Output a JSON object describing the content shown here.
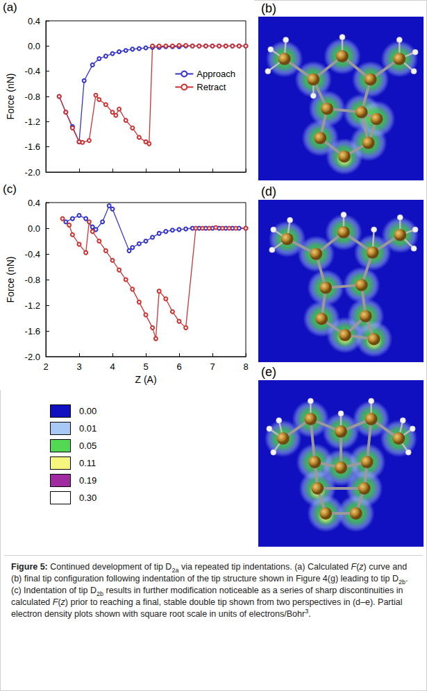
{
  "chart_data": [
    {
      "type": "line",
      "panel": "(a)",
      "y_label": "Force (nN)",
      "xlim": [
        2,
        8
      ],
      "xticks": [
        2,
        3,
        4,
        5,
        6,
        7,
        8
      ],
      "ylim": [
        -2,
        0.4
      ],
      "yticks": [
        {
          "value": -2,
          "label": "-2.0"
        },
        -1.6,
        -1.2,
        -0.8,
        -0.4,
        {
          "value": 0,
          "label": "0.0"
        },
        0.4
      ],
      "tick_labels": "y",
      "grid": false,
      "legend": "upper right",
      "marker": "open circle",
      "series": [
        {
          "name": "Approach",
          "color": "#3333cc",
          "x": [
            2.4,
            2.6,
            2.8,
            3.0,
            3.15,
            3.4,
            3.6,
            3.8,
            4.0,
            4.2,
            4.4,
            4.6,
            4.8,
            5.0,
            5.2,
            5.4,
            5.6,
            5.8,
            6.0,
            6.2,
            6.4,
            6.6,
            6.8,
            7.0,
            7.2,
            7.4,
            7.6,
            7.8,
            8.0
          ],
          "values": [
            -0.8,
            -1.05,
            -1.28,
            -1.52,
            -0.55,
            -0.3,
            -0.2,
            -0.16,
            -0.12,
            -0.09,
            -0.07,
            -0.05,
            -0.04,
            -0.03,
            -0.02,
            -0.02,
            -0.01,
            -0.01,
            -0.01,
            0,
            0,
            0,
            0,
            0,
            0,
            0,
            0,
            0,
            0
          ]
        },
        {
          "name": "Retract",
          "color": "#cc3333",
          "x": [
            2.4,
            2.6,
            2.8,
            3.0,
            3.1,
            3.3,
            3.5,
            3.6,
            3.8,
            4.0,
            4.1,
            4.2,
            4.4,
            4.6,
            4.8,
            5.0,
            5.1,
            5.2,
            5.4,
            5.6,
            5.8,
            6.0,
            6.2,
            6.4,
            6.6,
            6.8,
            7.0,
            7.2,
            7.4,
            7.6,
            7.8,
            8.0
          ],
          "values": [
            -0.8,
            -1.05,
            -1.3,
            -1.52,
            -1.53,
            -1.5,
            -0.78,
            -0.85,
            -0.93,
            -1.05,
            -1.1,
            -1.0,
            -1.18,
            -1.3,
            -1.45,
            -1.52,
            -1.55,
            0,
            0,
            0,
            0,
            0.01,
            0.01,
            0,
            0,
            0,
            0,
            0,
            0,
            0,
            0,
            0
          ]
        }
      ]
    },
    {
      "type": "line",
      "panel": "(c)",
      "x_label": "Z (A)",
      "y_label": "Force (nN)",
      "xlim": [
        2,
        8
      ],
      "xticks": [
        2,
        3,
        4,
        5,
        6,
        7,
        8
      ],
      "ylim": [
        -2,
        0.4
      ],
      "yticks": [
        {
          "value": -2,
          "label": "-2.0"
        },
        -1.6,
        -1.2,
        -0.8,
        -0.4,
        {
          "value": 0,
          "label": "0.0"
        },
        0.4
      ],
      "grid": false,
      "marker": "open circle",
      "series": [
        {
          "color": "#3333cc",
          "x": [
            2.6,
            2.8,
            3.0,
            3.2,
            3.4,
            3.5,
            3.7,
            3.9,
            4.0,
            4.5,
            4.6,
            4.8,
            5.0,
            5.2,
            5.4,
            5.6,
            5.8,
            6.0,
            6.2,
            6.4,
            6.6,
            6.8,
            7.0,
            7.2,
            7.4,
            7.6,
            7.8,
            8.0
          ],
          "values": [
            0.1,
            0.15,
            0.2,
            0.15,
            0.02,
            -0.02,
            0.1,
            0.35,
            0.3,
            -0.35,
            -0.3,
            -0.24,
            -0.2,
            -0.14,
            -0.08,
            -0.05,
            -0.03,
            -0.02,
            -0.01,
            0,
            0,
            0,
            0,
            0,
            0,
            0,
            0,
            0
          ]
        },
        {
          "color": "#cc3333",
          "x": [
            2.5,
            2.7,
            2.8,
            3.0,
            3.2,
            3.3,
            3.4,
            3.6,
            3.8,
            4.0,
            4.2,
            4.4,
            4.6,
            4.8,
            5.0,
            5.2,
            5.3,
            5.4,
            5.6,
            5.8,
            6.0,
            6.2,
            6.5,
            6.7,
            6.9,
            7.1,
            7.3,
            7.5,
            7.7,
            8.0
          ],
          "values": [
            0.15,
            0.05,
            -0.1,
            -0.25,
            -0.38,
            0.1,
            -0.05,
            -0.2,
            -0.35,
            -0.5,
            -0.65,
            -0.8,
            -0.95,
            -1.15,
            -1.35,
            -1.55,
            -1.72,
            -0.98,
            -1.1,
            -1.3,
            -1.45,
            -1.55,
            0,
            0,
            0,
            0.01,
            0,
            0,
            0,
            0
          ]
        }
      ]
    }
  ],
  "image_panels": [
    "(b)",
    "(d)",
    "(e)"
  ],
  "density_legend": [
    {
      "label": "0.00",
      "color": "#1010c0"
    },
    {
      "label": "0.01",
      "color": "#a8c8f6"
    },
    {
      "label": "0.05",
      "color": "#52d852"
    },
    {
      "label": "0.11",
      "color": "#f6f67e"
    },
    {
      "label": "0.19",
      "color": "#a02aa0"
    },
    {
      "label": "0.30",
      "color": "#ffffff"
    }
  ],
  "caption": [
    {
      "text": "Figure 5:",
      "style": "bold"
    },
    {
      "text": " Continued development of tip D"
    },
    {
      "text": "2a",
      "style": "sub"
    },
    {
      "text": " via repeated tip indentations. (a) Calculated "
    },
    {
      "text": "F",
      "style": "italic"
    },
    {
      "text": "("
    },
    {
      "text": "z",
      "style": "italic"
    },
    {
      "text": ") curve and (b) final tip configuration following indentation of the tip structure shown in Figure 4(g) leading to tip D"
    },
    {
      "text": "2b",
      "style": "sub"
    },
    {
      "text": ". (c) Indentation of tip D"
    },
    {
      "text": "2b",
      "style": "sub"
    },
    {
      "text": " results in further modification noticeable as a series of sharp discontinuities in calculated "
    },
    {
      "text": "F",
      "style": "italic"
    },
    {
      "text": "("
    },
    {
      "text": "z",
      "style": "italic"
    },
    {
      "text": ") prior to reaching a final, stable double tip shown from two perspectives in (d–e). Partial electron density plots shown with square root scale in units of electrons/Bohr"
    },
    {
      "text": "3",
      "style": "sup"
    },
    {
      "text": "."
    }
  ]
}
